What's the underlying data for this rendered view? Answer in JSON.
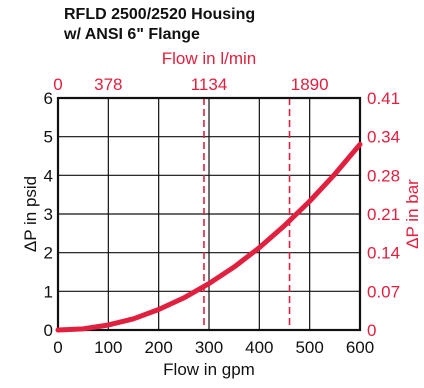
{
  "title_lines": [
    "RFLD 2500/2520 Housing",
    "w/ ANSI 6\" Flange"
  ],
  "chart_data": {
    "type": "line",
    "title": "RFLD 2500/2520 Housing w/ ANSI 6\" Flange",
    "xlabel": "Flow in gpm",
    "ylabel": "ΔP in psid",
    "x2label": "Flow in l/min",
    "y2label": "ΔP in bar",
    "xlim": [
      0,
      600
    ],
    "ylim": [
      0,
      6
    ],
    "x_ticks": [
      "0",
      "100",
      "200",
      "300",
      "400",
      "500",
      "600"
    ],
    "y_ticks": [
      "0",
      "1",
      "2",
      "3",
      "4",
      "5",
      "6"
    ],
    "x2_ticks": [
      {
        "label": "0",
        "at_gpm": 0
      },
      {
        "label": "378",
        "at_gpm": 100
      },
      {
        "label": "1134",
        "at_gpm": 300
      },
      {
        "label": "1890",
        "at_gpm": 500
      }
    ],
    "y2_ticks": [
      "0",
      "0.07",
      "0.14",
      "0.21",
      "0.28",
      "0.34",
      "0.41"
    ],
    "reference_lines_gpm": [
      290,
      460
    ],
    "grid": true,
    "series": [
      {
        "x": [
          0,
          50,
          100,
          150,
          200,
          250,
          300,
          350,
          400,
          450,
          500,
          550,
          600
        ],
        "y": [
          0,
          0.03,
          0.13,
          0.29,
          0.53,
          0.83,
          1.2,
          1.63,
          2.13,
          2.7,
          3.33,
          4.03,
          4.8
        ]
      }
    ],
    "colors": {
      "curve": "#e0203e",
      "secondary_axis": "#e0203e",
      "axis": "#111111"
    }
  }
}
